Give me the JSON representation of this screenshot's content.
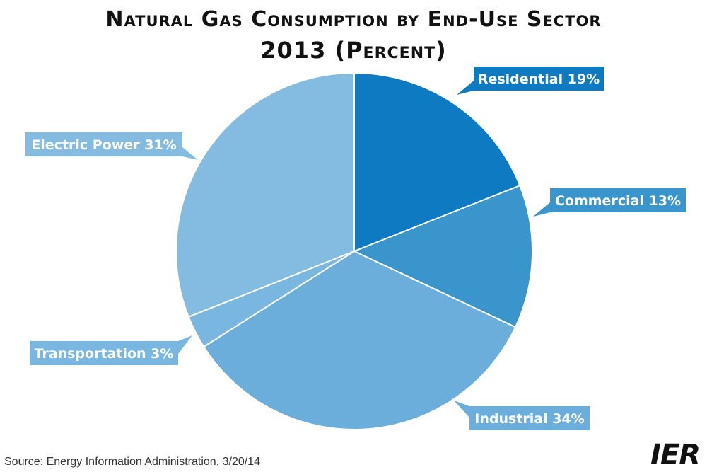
{
  "header": {
    "title_line1": "Natural Gas Consumption by End-Use Sector",
    "title_line2": "2013 (Percent)"
  },
  "footer": {
    "source": "Source: Energy Information Administration, 3/20/14",
    "logo": "IER"
  },
  "chart_data": {
    "type": "pie",
    "title": "Natural Gas Consumption by End-Use Sector 2013 (Percent)",
    "slices": [
      {
        "name": "Residential",
        "value": 19,
        "label": "Residential 19%",
        "color": "#0e7ac1"
      },
      {
        "name": "Commercial",
        "value": 13,
        "label": "Commercial 13%",
        "color": "#3a95cd"
      },
      {
        "name": "Industrial",
        "value": 34,
        "label": "Industrial 34%",
        "color": "#6baedb"
      },
      {
        "name": "Transportation",
        "value": 3,
        "label": "Transportation 3%",
        "color": "#79b7e1"
      },
      {
        "name": "Electric Power",
        "value": 31,
        "label": "Electric Power 31%",
        "color": "#84bbe0"
      }
    ],
    "legend": "none"
  }
}
